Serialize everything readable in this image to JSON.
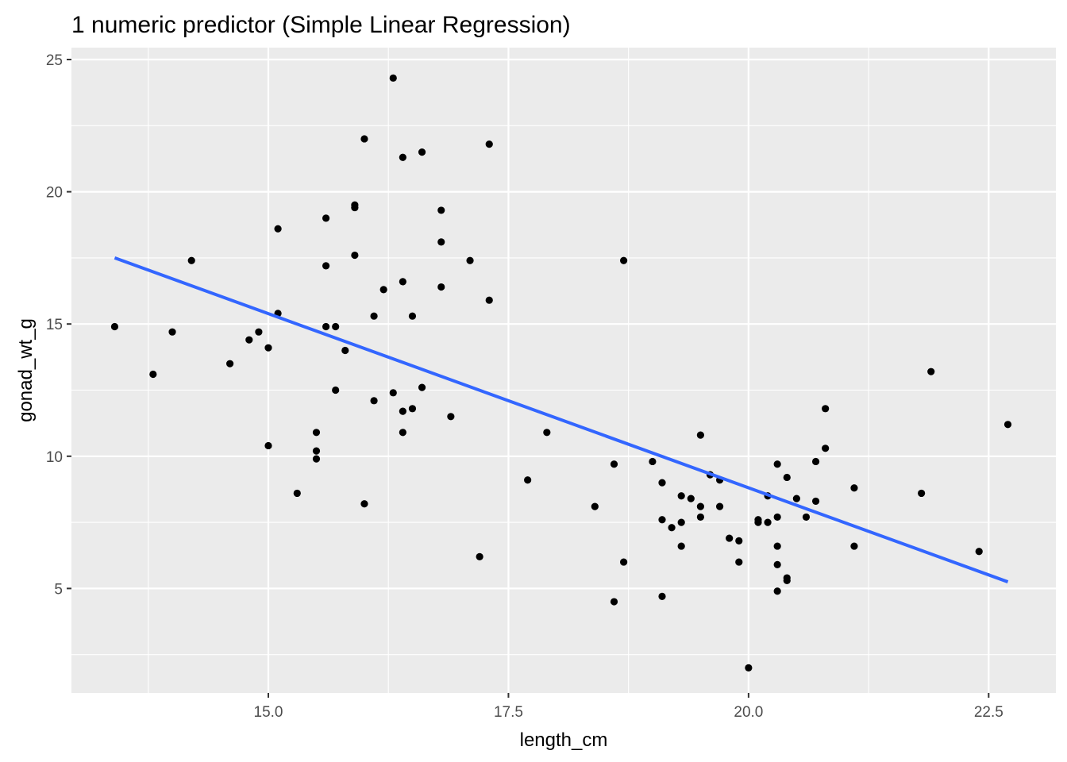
{
  "chart_data": {
    "type": "scatter",
    "title": "1 numeric predictor (Simple Linear Regression)",
    "xlabel": "length_cm",
    "ylabel": "gonad_wt_g",
    "xlim": [
      12.95,
      23.2
    ],
    "ylim": [
      1.05,
      25.45
    ],
    "x_ticks": [
      15.0,
      17.5,
      20.0,
      22.5
    ],
    "x_tick_labels": [
      "15.0",
      "17.5",
      "20.0",
      "22.5"
    ],
    "y_ticks": [
      5,
      10,
      15,
      20,
      25
    ],
    "y_tick_labels": [
      "5",
      "10",
      "15",
      "20",
      "25"
    ],
    "grid": true,
    "colors": {
      "panel": "#EBEBEB",
      "grid": "#FFFFFF",
      "points": "#000000",
      "fit_line": "#3366FF",
      "ticks": "#4D4D4D"
    },
    "points": [
      [
        13.4,
        14.9
      ],
      [
        13.8,
        13.1
      ],
      [
        14.0,
        14.7
      ],
      [
        14.2,
        17.4
      ],
      [
        14.6,
        13.5
      ],
      [
        14.8,
        14.4
      ],
      [
        14.9,
        14.7
      ],
      [
        15.0,
        14.1
      ],
      [
        15.0,
        10.4
      ],
      [
        15.1,
        18.6
      ],
      [
        15.1,
        15.4
      ],
      [
        15.3,
        8.6
      ],
      [
        15.5,
        10.9
      ],
      [
        15.5,
        10.2
      ],
      [
        15.5,
        9.9
      ],
      [
        15.6,
        19.0
      ],
      [
        15.6,
        17.2
      ],
      [
        15.6,
        14.9
      ],
      [
        15.7,
        14.9
      ],
      [
        15.7,
        12.5
      ],
      [
        15.8,
        14.0
      ],
      [
        15.9,
        19.5
      ],
      [
        15.9,
        19.4
      ],
      [
        15.9,
        17.6
      ],
      [
        16.0,
        22.0
      ],
      [
        16.0,
        8.2
      ],
      [
        16.1,
        15.3
      ],
      [
        16.1,
        12.1
      ],
      [
        16.2,
        16.3
      ],
      [
        16.3,
        24.3
      ],
      [
        16.3,
        12.4
      ],
      [
        16.4,
        21.3
      ],
      [
        16.4,
        16.6
      ],
      [
        16.4,
        11.7
      ],
      [
        16.4,
        10.9
      ],
      [
        16.5,
        15.3
      ],
      [
        16.5,
        11.8
      ],
      [
        16.6,
        21.5
      ],
      [
        16.6,
        12.6
      ],
      [
        16.8,
        19.3
      ],
      [
        16.8,
        18.1
      ],
      [
        16.8,
        16.4
      ],
      [
        16.9,
        11.5
      ],
      [
        17.1,
        17.4
      ],
      [
        17.2,
        6.2
      ],
      [
        17.3,
        21.8
      ],
      [
        17.3,
        15.9
      ],
      [
        17.7,
        9.1
      ],
      [
        17.9,
        10.9
      ],
      [
        18.4,
        8.1
      ],
      [
        18.6,
        9.7
      ],
      [
        18.6,
        4.5
      ],
      [
        18.7,
        17.4
      ],
      [
        18.7,
        6.0
      ],
      [
        19.0,
        9.8
      ],
      [
        19.1,
        9.0
      ],
      [
        19.1,
        7.6
      ],
      [
        19.1,
        4.7
      ],
      [
        19.2,
        7.3
      ],
      [
        19.3,
        8.5
      ],
      [
        19.3,
        7.5
      ],
      [
        19.3,
        6.6
      ],
      [
        19.4,
        8.4
      ],
      [
        19.5,
        10.8
      ],
      [
        19.5,
        8.1
      ],
      [
        19.5,
        7.7
      ],
      [
        19.6,
        9.3
      ],
      [
        19.7,
        9.1
      ],
      [
        19.7,
        8.1
      ],
      [
        19.8,
        6.9
      ],
      [
        19.9,
        6.8
      ],
      [
        19.9,
        6.0
      ],
      [
        20.0,
        2.0
      ],
      [
        20.1,
        7.6
      ],
      [
        20.1,
        7.5
      ],
      [
        20.2,
        8.5
      ],
      [
        20.2,
        7.5
      ],
      [
        20.3,
        9.7
      ],
      [
        20.3,
        7.7
      ],
      [
        20.3,
        6.6
      ],
      [
        20.3,
        5.9
      ],
      [
        20.3,
        4.9
      ],
      [
        20.4,
        9.2
      ],
      [
        20.4,
        5.4
      ],
      [
        20.4,
        5.3
      ],
      [
        20.5,
        8.4
      ],
      [
        20.6,
        7.7
      ],
      [
        20.7,
        9.8
      ],
      [
        20.7,
        8.3
      ],
      [
        20.8,
        11.8
      ],
      [
        20.8,
        10.3
      ],
      [
        21.1,
        8.8
      ],
      [
        21.1,
        6.6
      ],
      [
        21.8,
        8.6
      ],
      [
        21.9,
        13.2
      ],
      [
        22.4,
        6.4
      ],
      [
        22.7,
        11.2
      ]
    ],
    "fit_line": {
      "x": [
        13.4,
        22.7
      ],
      "y": [
        17.5,
        5.25
      ]
    }
  }
}
